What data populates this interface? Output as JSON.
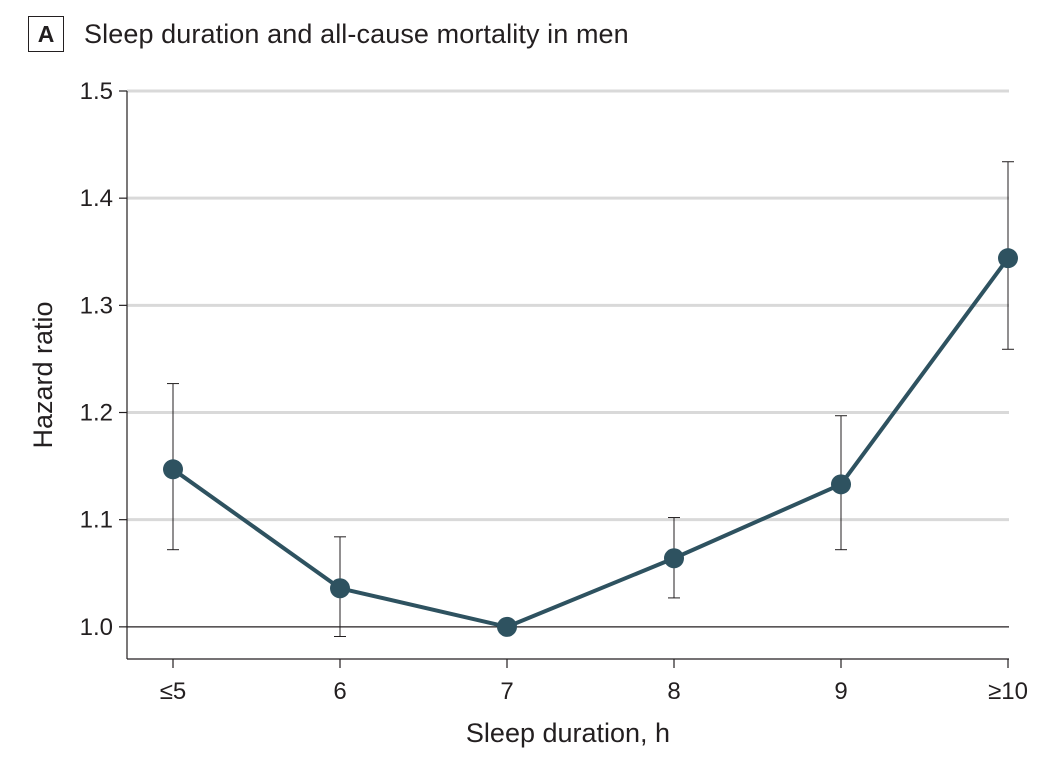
{
  "panel": {
    "letter": "A"
  },
  "colors": {
    "series": "#2e5260",
    "grid": "#d9d9d9",
    "axis": "#231f20",
    "reference": "#231f20"
  },
  "chart_data": {
    "type": "line",
    "title": "Sleep duration and all-cause mortality in men",
    "xlabel": "Sleep duration, h",
    "ylabel": "Hazard ratio",
    "categories": [
      "≤5",
      "6",
      "7",
      "8",
      "9",
      "≥10"
    ],
    "series": [
      {
        "values": [
          1.147,
          1.036,
          1.0,
          1.064,
          1.133,
          1.344
        ],
        "ci_lower": [
          1.072,
          0.991,
          1.0,
          1.027,
          1.072,
          1.259
        ],
        "ci_upper": [
          1.227,
          1.084,
          1.0,
          1.102,
          1.197,
          1.434
        ]
      }
    ],
    "ylim": [
      0.97,
      1.5
    ],
    "yticks": [
      1.0,
      1.1,
      1.2,
      1.3,
      1.4,
      1.5
    ],
    "ytick_labels": [
      "1.0",
      "1.1",
      "1.2",
      "1.3",
      "1.4",
      "1.5"
    ],
    "reference_line": 1.0,
    "grid": true,
    "legend": "none"
  }
}
